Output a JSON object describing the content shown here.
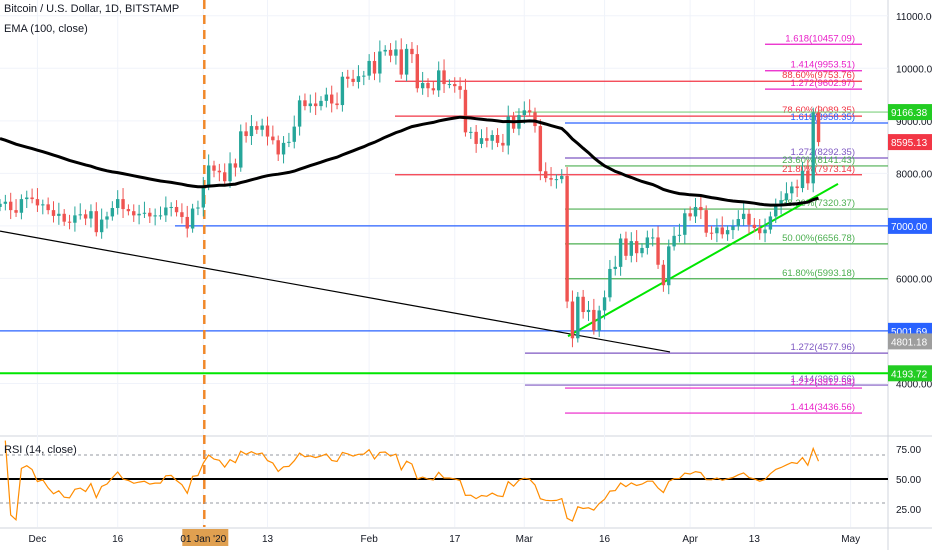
{
  "header": {
    "symbol_title": "Bitcoin / U.S. Dollar, 1D, BITSTAMP",
    "ema_label": "EMA (100, close)"
  },
  "rsi": {
    "label": "RSI (14, close)",
    "ticks": [
      "75.00",
      "50.00",
      "25.00"
    ],
    "y_ticks": [
      75,
      50,
      25
    ],
    "overbought": 70,
    "oversold": 30,
    "midline": 50
  },
  "chart_data": {
    "type": "candlestick",
    "price_ylim": [
      3000,
      11300
    ],
    "price_ticks": [
      "11000.00",
      "10000.00",
      "9000.00",
      "8000.00",
      "7000.00",
      "6000.00",
      "5000.00",
      "4000.00"
    ],
    "price_tick_values": [
      11000,
      10000,
      9000,
      8000,
      7000,
      6000,
      5000,
      4000
    ],
    "x_date_labels": [
      "Dec",
      "16",
      "01 Jan '20",
      "13",
      "Feb",
      "17",
      "Mar",
      "16",
      "Apr",
      "13",
      "May"
    ],
    "x_date_values": [
      "2019-12-01",
      "2019-12-16",
      "2020-01-01",
      "2020-01-13",
      "2020-02-01",
      "2020-02-17",
      "2020-03-01",
      "2020-03-16",
      "2020-04-01",
      "2020-04-13",
      "2020-05-01"
    ],
    "highlighted_date_label": "01 Jan '20",
    "price_badges": [
      {
        "label": "9166.38",
        "value": 9166.38,
        "color": "#22cc22"
      },
      {
        "label": "8595.13",
        "value": 8595.13,
        "color": "#f23645"
      },
      {
        "label": "7000.00",
        "value": 7000.0,
        "color": "#2962ff"
      },
      {
        "label": "5001.69",
        "value": 5001.69,
        "color": "#2962ff"
      },
      {
        "label": "4801.18",
        "value": 4801.18,
        "color": "#9e9e9e"
      },
      {
        "label": "4193.72",
        "value": 4193.72,
        "color": "#22cc22"
      }
    ],
    "fib_levels": [
      {
        "label": "1.618(10457.09)",
        "value": 10457.09,
        "color": "#e91ec8"
      },
      {
        "label": "1.414(9953.51)",
        "value": 9953.51,
        "color": "#e91ec8"
      },
      {
        "label": "1.272(9602.97)",
        "value": 9602.97,
        "color": "#e91ec8"
      },
      {
        "label": "88.60%(9753.76)",
        "value": 9753.76,
        "color": "#f23645"
      },
      {
        "label": "78.60%(9089.35)",
        "value": 9089.35,
        "color": "#f23645"
      },
      {
        "label": "1.618(8958.35)",
        "value": 8958.35,
        "color": "#2962ff"
      },
      {
        "label": "1.272(8292.35)",
        "value": 8292.35,
        "color": "#7e57c2"
      },
      {
        "label": "23.60%(8141.43)",
        "value": 8141.43,
        "color": "#4caf50"
      },
      {
        "label": "21.80%(7973.14)",
        "value": 7973.14,
        "color": "#f23645"
      },
      {
        "label": "38.20%(7320.37)",
        "value": 7320.37,
        "color": "#4caf50"
      },
      {
        "label": "50.00%(6656.78)",
        "value": 6656.78,
        "color": "#4caf50"
      },
      {
        "label": "61.80%(5993.18)",
        "value": 5993.18,
        "color": "#4caf50"
      },
      {
        "label": "1.272(4577.96)",
        "value": 4577.96,
        "color": "#7e57c2"
      },
      {
        "label": "1.414(3969.66)",
        "value": 3969.66,
        "color": "#7e57c2"
      },
      {
        "label": "1.272(3912.54)",
        "value": 3912.54,
        "color": "#e91ec8"
      },
      {
        "label": "1.414(3436.56)",
        "value": 3436.56,
        "color": "#e91ec8"
      }
    ],
    "close_series": [
      7420,
      7460,
      7300,
      7250,
      7510,
      7540,
      7510,
      7390,
      7410,
      7300,
      7190,
      7230,
      7080,
      7060,
      7200,
      7220,
      7140,
      7280,
      6880,
      7120,
      7180,
      7340,
      7510,
      7320,
      7280,
      7200,
      7230,
      7250,
      7180,
      7200,
      7200,
      7350,
      7360,
      7260,
      7170,
      6950,
      7330,
      7350,
      7760,
      8150,
      8050,
      8020,
      7850,
      8190,
      8110,
      8800,
      8710,
      8900,
      8830,
      8910,
      8700,
      8630,
      8360,
      8580,
      8600,
      8890,
      9390,
      9280,
      9330,
      9280,
      9380,
      9500,
      9330,
      9300,
      9840,
      9800,
      9740,
      9850,
      9860,
      10140,
      9900,
      10320,
      10350,
      10240,
      10360,
      9880,
      10370,
      10270,
      9620,
      9720,
      9620,
      9580,
      9960,
      9700,
      9700,
      9660,
      9590,
      8780,
      8790,
      8560,
      8670,
      8620,
      8730,
      8580,
      8530,
      9080,
      8850,
      9110,
      9200,
      9160,
      8900,
      8040,
      7910,
      7880,
      7890,
      7950,
      5560,
      4860,
      5650,
      5360,
      5400,
      5010,
      5390,
      5640,
      6180,
      6220,
      6760,
      6430,
      6710,
      6480,
      6580,
      6780,
      6780,
      6260,
      5870,
      6610,
      6810,
      6830,
      7240,
      7180,
      7360,
      7300,
      6870,
      6860,
      6970,
      6840,
      6920,
      6990,
      7130,
      7230,
      7020,
      6960,
      6860,
      6930,
      7180,
      7390,
      7490,
      7620,
      7750,
      7720,
      8050,
      7810,
      9160,
      8595
    ],
    "close_series_start_date": "2019-11-24",
    "annotations": [
      {
        "label": "ascending support trendline",
        "color": "#00e600"
      },
      {
        "label": "descending trendline",
        "color": "#000000"
      },
      {
        "label": "vertical marker at 01 Jan '20",
        "color": "#ff8c00"
      }
    ],
    "grid": true
  },
  "colors": {
    "up": "#26a69a",
    "down": "#ef5350",
    "ema": "#000000",
    "rsi_line": "#ff8c00",
    "trend_green": "#00e600",
    "blue_level": "#2962ff",
    "vertical_dash": "#f0882a"
  }
}
